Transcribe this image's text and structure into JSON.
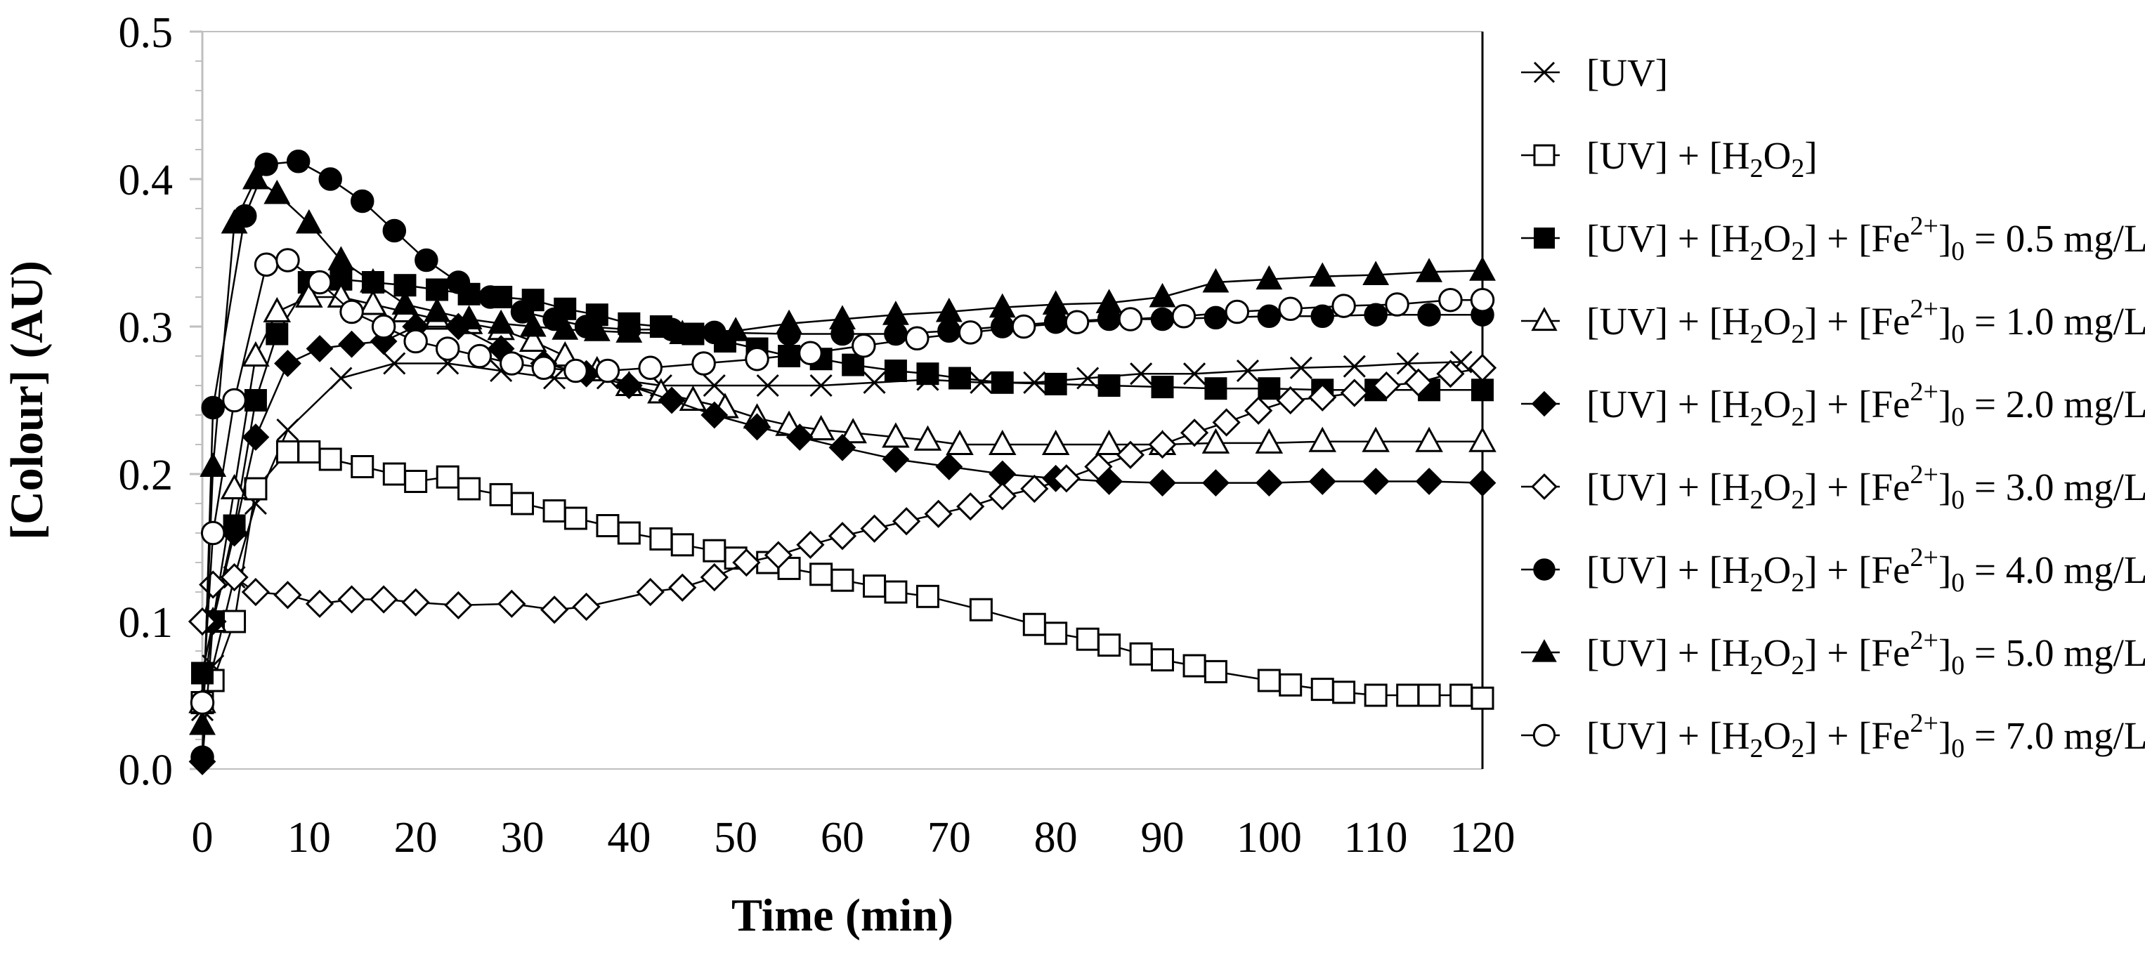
{
  "chart_data": {
    "type": "line",
    "title": "",
    "xlabel": "Time (min)",
    "ylabel": "[Colour] (AU)",
    "xlim": [
      0,
      120
    ],
    "ylim": [
      0,
      0.5
    ],
    "x_ticks": [
      "0",
      "10",
      "20",
      "30",
      "40",
      "50",
      "60",
      "70",
      "80",
      "90",
      "100",
      "110",
      "120"
    ],
    "y_ticks": [
      "0.0",
      "0.1",
      "0.2",
      "0.3",
      "0.4",
      "0.5"
    ],
    "legend_position": "right",
    "series": [
      {
        "name": "[UV]",
        "marker": "x",
        "legend": {
          "parts": [
            {
              "t": "[UV]"
            }
          ]
        },
        "x": [
          0,
          1,
          3,
          5,
          8,
          13,
          18,
          23,
          28,
          33,
          38,
          43,
          48,
          53,
          58,
          63,
          68,
          73,
          78,
          83,
          88,
          93,
          98,
          103,
          108,
          113,
          118
        ],
        "y": [
          0.04,
          0.07,
          0.13,
          0.18,
          0.23,
          0.265,
          0.275,
          0.275,
          0.27,
          0.265,
          0.265,
          0.26,
          0.26,
          0.26,
          0.26,
          0.262,
          0.264,
          0.262,
          0.262,
          0.265,
          0.268,
          0.268,
          0.27,
          0.272,
          0.273,
          0.275,
          0.276
        ]
      },
      {
        "name": "[UV] + [H2O2]",
        "marker": "square-open",
        "legend": {
          "parts": [
            {
              "t": "[UV] + [H"
            },
            {
              "t": "2",
              "sub": true
            },
            {
              "t": "O"
            },
            {
              "t": "2",
              "sub": true
            },
            {
              "t": "]"
            }
          ]
        },
        "x": [
          0,
          1,
          3,
          5,
          8,
          10,
          12,
          15,
          18,
          20,
          23,
          25,
          28,
          30,
          33,
          35,
          38,
          40,
          43,
          45,
          48,
          50,
          53,
          55,
          58,
          60,
          63,
          65,
          68,
          73,
          78,
          80,
          83,
          85,
          88,
          90,
          93,
          95,
          100,
          102,
          105,
          107,
          110,
          113,
          115,
          118,
          120
        ],
        "y": [
          0.045,
          0.06,
          0.1,
          0.19,
          0.215,
          0.215,
          0.21,
          0.205,
          0.2,
          0.195,
          0.198,
          0.19,
          0.186,
          0.18,
          0.175,
          0.17,
          0.165,
          0.16,
          0.156,
          0.152,
          0.148,
          0.143,
          0.14,
          0.136,
          0.132,
          0.128,
          0.124,
          0.12,
          0.117,
          0.108,
          0.098,
          0.092,
          0.088,
          0.084,
          0.078,
          0.074,
          0.07,
          0.066,
          0.06,
          0.057,
          0.054,
          0.052,
          0.05,
          0.05,
          0.05,
          0.05,
          0.048
        ]
      },
      {
        "name": "[UV] + [H2O2] + [Fe2+]0 = 0.5 mg/L",
        "marker": "square-filled",
        "legend": {
          "parts": [
            {
              "t": "[UV] + [H"
            },
            {
              "t": "2",
              "sub": true
            },
            {
              "t": "O"
            },
            {
              "t": "2",
              "sub": true
            },
            {
              "t": "] + [Fe"
            },
            {
              "t": "2+",
              "sup": true
            },
            {
              "t": "]"
            },
            {
              "t": "0",
              "sub": true
            },
            {
              "t": " = 0.5 mg/L"
            }
          ]
        },
        "x": [
          0,
          1,
          3,
          5,
          7,
          10,
          13,
          16,
          19,
          22,
          25,
          28,
          31,
          34,
          37,
          40,
          43,
          46,
          49,
          52,
          55,
          58,
          61,
          65,
          68,
          71,
          75,
          80,
          85,
          90,
          95,
          100,
          105,
          110,
          115,
          120
        ],
        "y": [
          0.065,
          0.1,
          0.165,
          0.25,
          0.295,
          0.33,
          0.332,
          0.33,
          0.328,
          0.325,
          0.322,
          0.32,
          0.318,
          0.312,
          0.308,
          0.302,
          0.3,
          0.295,
          0.29,
          0.285,
          0.28,
          0.278,
          0.274,
          0.27,
          0.268,
          0.265,
          0.262,
          0.261,
          0.26,
          0.259,
          0.258,
          0.258,
          0.257,
          0.257,
          0.257,
          0.257
        ]
      },
      {
        "name": "[UV] + [H2O2] + [Fe2+]0 = 1.0 mg/L",
        "marker": "triangle-open",
        "legend": {
          "parts": [
            {
              "t": "[UV] + [H"
            },
            {
              "t": "2",
              "sub": true
            },
            {
              "t": "O"
            },
            {
              "t": "2",
              "sub": true
            },
            {
              "t": "] + [Fe"
            },
            {
              "t": "2+",
              "sup": true
            },
            {
              "t": "]"
            },
            {
              "t": "0",
              "sub": true
            },
            {
              "t": " = 1.0 mg/L"
            }
          ]
        },
        "x": [
          0,
          1,
          3,
          5,
          7,
          10,
          13,
          16,
          19,
          22,
          25,
          28,
          31,
          34,
          37,
          40,
          43,
          46,
          49,
          52,
          55,
          58,
          61,
          65,
          68,
          71,
          75,
          80,
          85,
          90,
          95,
          100,
          105,
          110,
          115,
          120
        ],
        "y": [
          0.045,
          0.1,
          0.19,
          0.28,
          0.31,
          0.32,
          0.32,
          0.315,
          0.31,
          0.305,
          0.302,
          0.298,
          0.29,
          0.28,
          0.27,
          0.26,
          0.255,
          0.25,
          0.245,
          0.238,
          0.233,
          0.23,
          0.228,
          0.225,
          0.223,
          0.22,
          0.22,
          0.22,
          0.22,
          0.22,
          0.221,
          0.221,
          0.222,
          0.222,
          0.222,
          0.222
        ]
      },
      {
        "name": "[UV] + [H2O2] + [Fe2+]0 = 2.0 mg/L",
        "marker": "diamond-filled",
        "legend": {
          "parts": [
            {
              "t": "[UV] + [H"
            },
            {
              "t": "2",
              "sub": true
            },
            {
              "t": "O"
            },
            {
              "t": "2",
              "sub": true
            },
            {
              "t": "] + [Fe"
            },
            {
              "t": "2+",
              "sup": true
            },
            {
              "t": "]"
            },
            {
              "t": "0",
              "sub": true
            },
            {
              "t": " = 2.0 mg/L"
            }
          ]
        },
        "x": [
          0,
          1,
          3,
          5,
          8,
          11,
          14,
          17,
          20,
          24,
          28,
          32,
          36,
          40,
          44,
          48,
          52,
          56,
          60,
          65,
          70,
          75,
          80,
          85,
          90,
          95,
          100,
          105,
          110,
          115,
          120
        ],
        "y": [
          0.005,
          0.1,
          0.16,
          0.225,
          0.275,
          0.285,
          0.288,
          0.29,
          0.3,
          0.3,
          0.285,
          0.275,
          0.268,
          0.26,
          0.25,
          0.24,
          0.232,
          0.225,
          0.218,
          0.21,
          0.205,
          0.2,
          0.197,
          0.195,
          0.194,
          0.194,
          0.194,
          0.195,
          0.195,
          0.195,
          0.194
        ]
      },
      {
        "name": "[UV] + [H2O2] + [Fe2+]0 = 3.0 mg/L",
        "marker": "diamond-open",
        "legend": {
          "parts": [
            {
              "t": "[UV] + [H"
            },
            {
              "t": "2",
              "sub": true
            },
            {
              "t": "O"
            },
            {
              "t": "2",
              "sub": true
            },
            {
              "t": "] + [Fe"
            },
            {
              "t": "2+",
              "sup": true
            },
            {
              "t": "]"
            },
            {
              "t": "0",
              "sub": true
            },
            {
              "t": " = 3.0 mg/L"
            }
          ]
        },
        "x": [
          0,
          1,
          3,
          5,
          8,
          11,
          14,
          17,
          20,
          24,
          29,
          33,
          36,
          42,
          45,
          48,
          51,
          54,
          57,
          60,
          63,
          66,
          69,
          72,
          75,
          78,
          81,
          84,
          87,
          90,
          93,
          96,
          99,
          102,
          105,
          108,
          111,
          114,
          117,
          120
        ],
        "y": [
          0.1,
          0.125,
          0.13,
          0.12,
          0.118,
          0.112,
          0.115,
          0.115,
          0.113,
          0.111,
          0.112,
          0.108,
          0.11,
          0.12,
          0.123,
          0.13,
          0.14,
          0.145,
          0.152,
          0.158,
          0.163,
          0.168,
          0.173,
          0.178,
          0.185,
          0.19,
          0.197,
          0.205,
          0.213,
          0.22,
          0.228,
          0.235,
          0.243,
          0.25,
          0.252,
          0.255,
          0.26,
          0.262,
          0.268,
          0.272
        ]
      },
      {
        "name": "[UV] + [H2O2] + [Fe2+]0 = 4.0 mg/L",
        "marker": "circle-filled",
        "legend": {
          "parts": [
            {
              "t": "[UV] + [H"
            },
            {
              "t": "2",
              "sub": true
            },
            {
              "t": "O"
            },
            {
              "t": "2",
              "sub": true
            },
            {
              "t": "] + [Fe"
            },
            {
              "t": "2+",
              "sup": true
            },
            {
              "t": "]"
            },
            {
              "t": "0",
              "sub": true
            },
            {
              "t": " = 4.0 mg/L"
            }
          ]
        },
        "x": [
          0,
          1,
          4,
          6,
          9,
          12,
          15,
          18,
          21,
          24,
          27,
          30,
          33,
          36,
          40,
          44,
          48,
          55,
          60,
          65,
          70,
          75,
          80,
          85,
          90,
          95,
          100,
          105,
          110,
          115,
          120
        ],
        "y": [
          0.008,
          0.245,
          0.375,
          0.41,
          0.412,
          0.4,
          0.385,
          0.365,
          0.345,
          0.33,
          0.32,
          0.31,
          0.305,
          0.3,
          0.298,
          0.298,
          0.296,
          0.295,
          0.295,
          0.295,
          0.297,
          0.3,
          0.303,
          0.305,
          0.305,
          0.306,
          0.307,
          0.307,
          0.308,
          0.308,
          0.308
        ]
      },
      {
        "name": "[UV] + [H2O2] + [Fe2+]0 = 5.0 mg/L",
        "marker": "triangle-filled",
        "legend": {
          "parts": [
            {
              "t": "[UV] + [H"
            },
            {
              "t": "2",
              "sub": true
            },
            {
              "t": "O"
            },
            {
              "t": "2",
              "sub": true
            },
            {
              "t": "] + [Fe"
            },
            {
              "t": "2+",
              "sup": true
            },
            {
              "t": "]"
            },
            {
              "t": "0",
              "sub": true
            },
            {
              "t": " = 5.0 mg/L"
            }
          ]
        },
        "x": [
          0,
          1,
          3,
          5,
          7,
          10,
          13,
          16,
          19,
          22,
          25,
          28,
          31,
          34,
          37,
          40,
          45,
          50,
          55,
          60,
          65,
          70,
          75,
          80,
          85,
          90,
          95,
          100,
          105,
          110,
          115,
          120
        ],
        "y": [
          0.03,
          0.205,
          0.37,
          0.4,
          0.39,
          0.37,
          0.345,
          0.33,
          0.315,
          0.31,
          0.305,
          0.302,
          0.3,
          0.298,
          0.297,
          0.296,
          0.295,
          0.297,
          0.302,
          0.305,
          0.308,
          0.31,
          0.313,
          0.315,
          0.316,
          0.32,
          0.33,
          0.332,
          0.334,
          0.335,
          0.337,
          0.338
        ]
      },
      {
        "name": "[UV] + [H2O2] + [Fe2+]0 = 7.0 mg/L",
        "marker": "circle-open",
        "legend": {
          "parts": [
            {
              "t": "[UV] + [H"
            },
            {
              "t": "2",
              "sub": true
            },
            {
              "t": "O"
            },
            {
              "t": "2",
              "sub": true
            },
            {
              "t": "] + [Fe"
            },
            {
              "t": "2+",
              "sup": true
            },
            {
              "t": "]"
            },
            {
              "t": "0",
              "sub": true
            },
            {
              "t": " = 7.0 mg/L"
            }
          ]
        },
        "x": [
          0,
          1,
          3,
          6,
          8,
          11,
          14,
          17,
          20,
          23,
          26,
          29,
          32,
          35,
          38,
          42,
          47,
          52,
          57,
          62,
          67,
          72,
          77,
          82,
          87,
          92,
          97,
          102,
          107,
          112,
          117,
          120
        ],
        "y": [
          0.045,
          0.16,
          0.25,
          0.342,
          0.345,
          0.33,
          0.31,
          0.3,
          0.29,
          0.285,
          0.28,
          0.275,
          0.272,
          0.27,
          0.27,
          0.272,
          0.275,
          0.278,
          0.282,
          0.287,
          0.292,
          0.296,
          0.3,
          0.303,
          0.305,
          0.307,
          0.31,
          0.312,
          0.314,
          0.315,
          0.318,
          0.318
        ]
      }
    ]
  }
}
